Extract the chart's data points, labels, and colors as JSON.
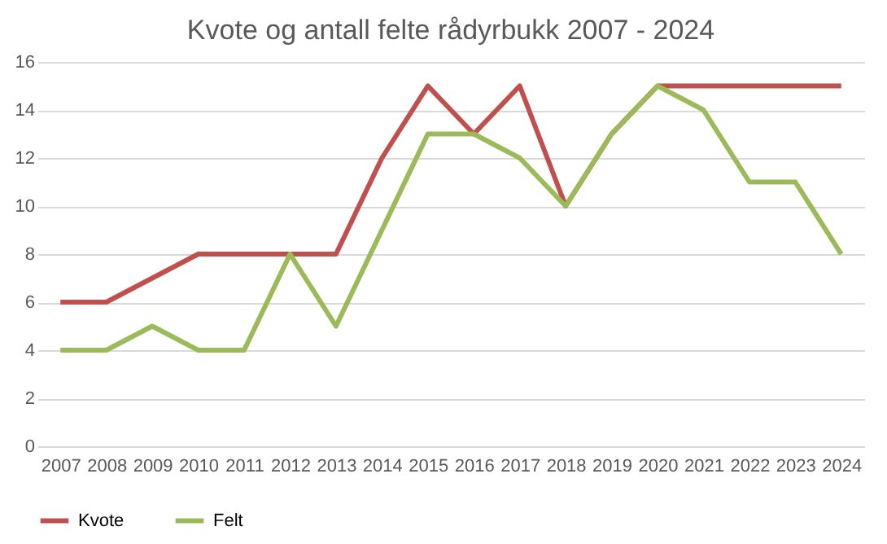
{
  "chart_data": {
    "type": "line",
    "title": "Kvote og antall felte rådyrbukk 2007 - 2024",
    "categories": [
      "2007",
      "2008",
      "2009",
      "2010",
      "2011",
      "2012",
      "2013",
      "2014",
      "2015",
      "2016",
      "2017",
      "2018",
      "2019",
      "2020",
      "2021",
      "2022",
      "2023",
      "2024"
    ],
    "series": [
      {
        "name": "Kvote",
        "color": "#c0504d",
        "values": [
          6,
          6,
          7,
          8,
          8,
          8,
          8,
          12,
          15,
          13,
          15,
          10,
          13,
          15,
          15,
          15,
          15,
          15
        ]
      },
      {
        "name": "Felt",
        "color": "#9bbb59",
        "values": [
          4,
          4,
          5,
          4,
          4,
          8,
          5,
          9,
          13,
          13,
          12,
          10,
          13,
          15,
          14,
          11,
          11,
          8
        ]
      }
    ],
    "ylim": [
      0,
      16
    ],
    "yticks": [
      0,
      2,
      4,
      6,
      8,
      10,
      12,
      14,
      16
    ],
    "grid": "y",
    "legend": "bottom",
    "marker": "none",
    "line_style": "solid"
  }
}
